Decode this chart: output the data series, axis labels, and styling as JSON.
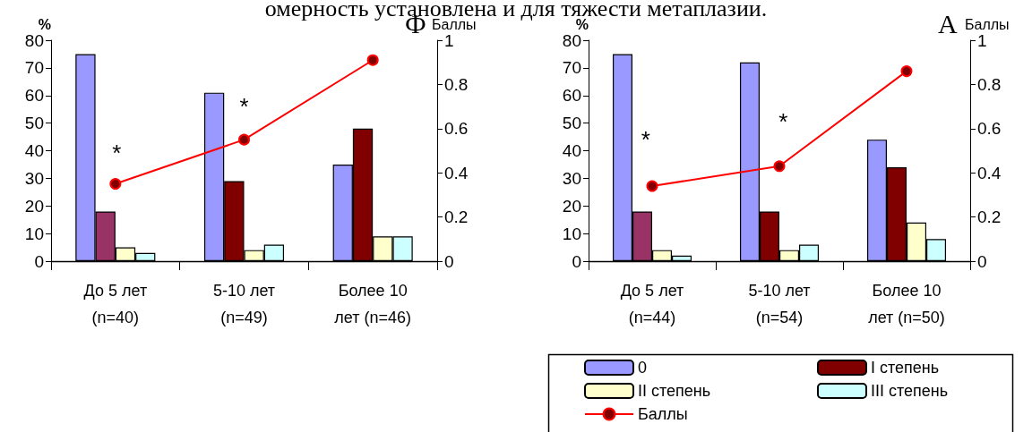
{
  "chart_data": [
    {
      "type": "bar",
      "title": "омерность установлена и для тяжести метаплазии.",
      "ylabel": "%",
      "y2label": "Баллы",
      "annotations": [
        "Ф",
        "*",
        "*"
      ],
      "categories": [
        "До 5 лет (n=40)",
        "5-10 лет (n=49)",
        "Более 10 лет (n=46)"
      ],
      "series": [
        {
          "color": "#9999ff",
          "values": [
            75,
            61,
            35
          ]
        },
        {
          "color": "#800000",
          "colors": [
            "#993366",
            "#800000",
            "#800000"
          ],
          "values": [
            18,
            29,
            48
          ]
        },
        {
          "color": "#ffffcc",
          "values": [
            5,
            4,
            9
          ]
        },
        {
          "color": "#ccffff",
          "values": [
            3,
            6,
            9
          ]
        },
        {
          "type": "line",
          "axis": "y2",
          "color": "#ff0000",
          "values": [
            0.35,
            0.55,
            0.91
          ]
        }
      ],
      "ylim": [
        0,
        80
      ],
      "yticks": [
        0,
        10,
        20,
        30,
        40,
        50,
        60,
        70,
        80
      ],
      "y2lim": [
        0,
        1
      ],
      "y2ticks": [
        0,
        0.2,
        0.4,
        0.6,
        0.8,
        1
      ],
      "grid": false,
      "legend": false,
      "marker": "circle",
      "line_style": "solid"
    },
    {
      "type": "bar",
      "ylabel": "%",
      "y2label": "Баллы",
      "annotations": [
        "А",
        "*",
        "*"
      ],
      "categories": [
        "До 5 лет (n=44)",
        "5-10 лет (n=54)",
        "Более 10 лет (n=50)"
      ],
      "series": [
        {
          "name": "0",
          "color": "#9999ff",
          "values": [
            75,
            72,
            44
          ]
        },
        {
          "name": "I степень",
          "color": "#800000",
          "colors": [
            "#993366",
            "#800000",
            "#800000"
          ],
          "values": [
            18,
            18,
            34
          ]
        },
        {
          "name": "II степень",
          "color": "#ffffcc",
          "values": [
            4,
            4,
            14
          ]
        },
        {
          "name": "III степень",
          "color": "#ccffff",
          "values": [
            2,
            6,
            8
          ]
        },
        {
          "name": "Баллы",
          "type": "line",
          "axis": "y2",
          "color": "#ff0000",
          "values": [
            0.34,
            0.43,
            0.86
          ]
        }
      ],
      "ylim": [
        0,
        80
      ],
      "yticks": [
        0,
        10,
        20,
        30,
        40,
        50,
        60,
        70,
        80
      ],
      "y2lim": [
        0,
        1
      ],
      "y2ticks": [
        0,
        0.2,
        0.4,
        0.6,
        0.8,
        1
      ],
      "grid": false,
      "legend": "bottom",
      "marker": "circle",
      "line_style": "solid"
    }
  ]
}
